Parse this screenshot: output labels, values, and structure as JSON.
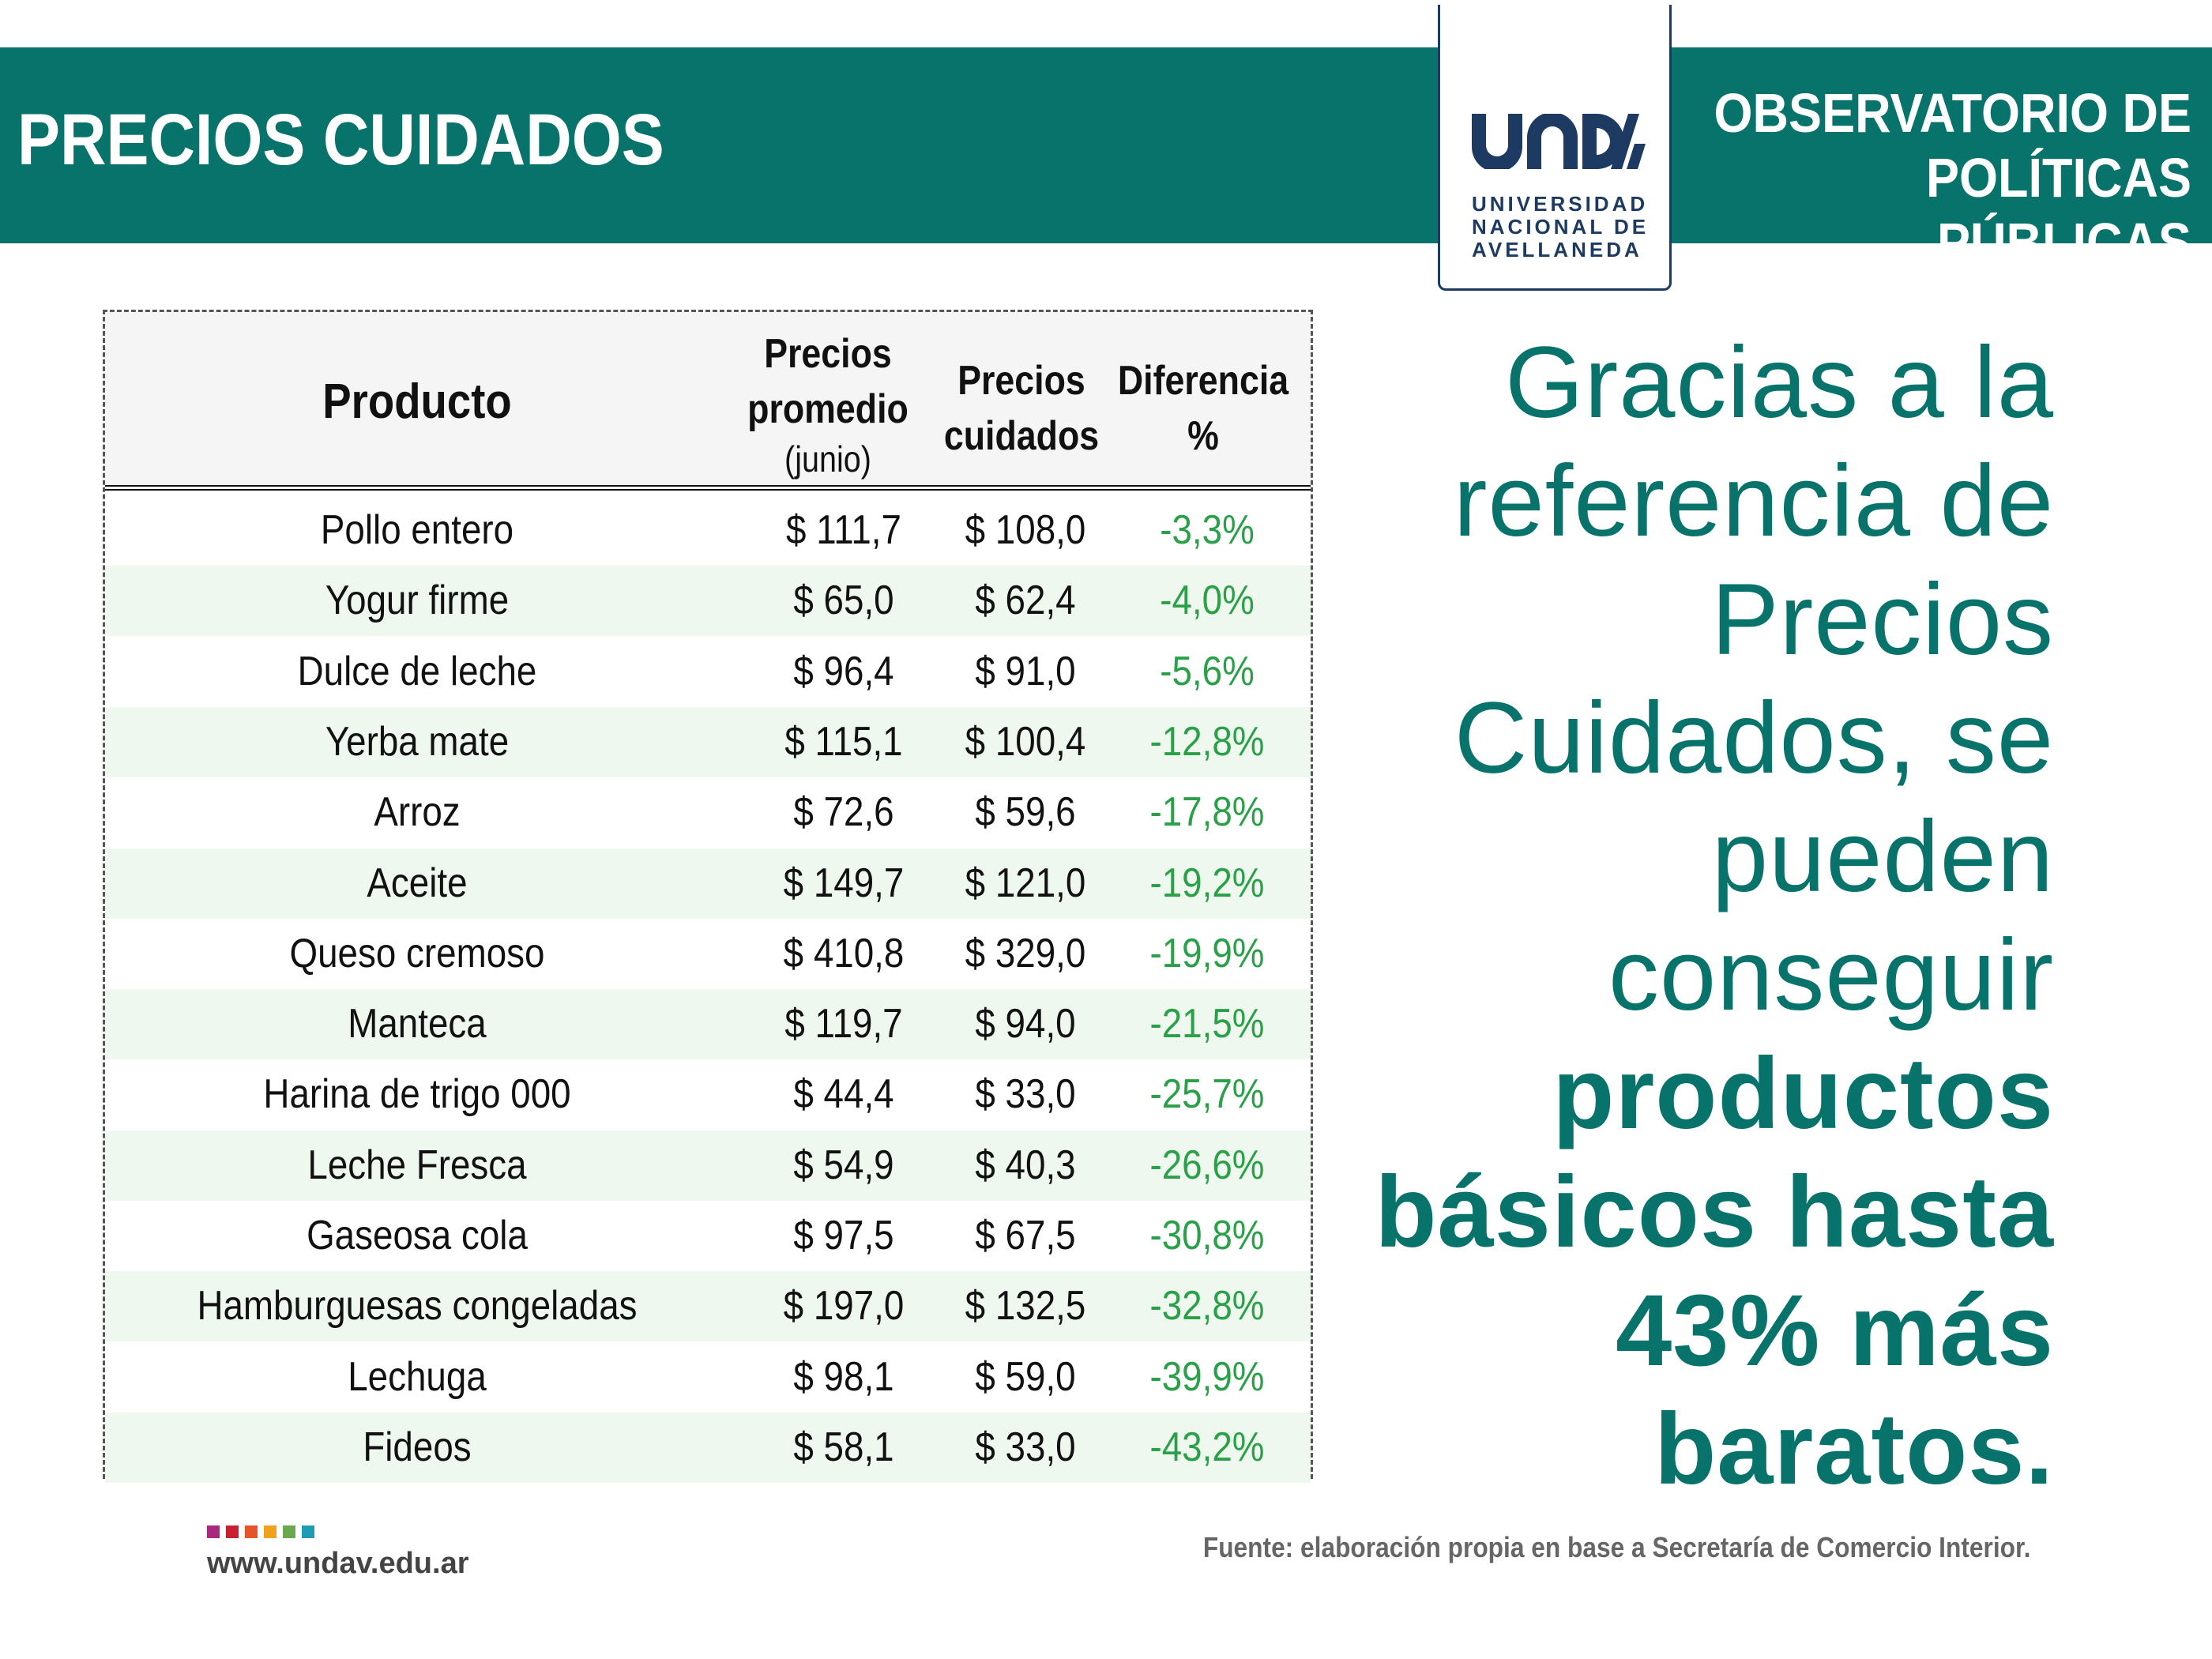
{
  "header": {
    "title": "PRECIOS CUIDADOS",
    "observatorio_line1": "OBSERVATORIO DE",
    "observatorio_line2": "POLÍTICAS PÚBLICAS",
    "logo_mark": "UNDAV",
    "logo_line1": "UNIVERSIDAD",
    "logo_line2": "NACIONAL DE",
    "logo_line3": "AVELLANEDA"
  },
  "table": {
    "headers": {
      "product": "Producto",
      "promedio_line1": "Precios",
      "promedio_line2": "promedio",
      "promedio_sub": "(junio)",
      "cuidados_line1": "Precios",
      "cuidados_line2": "cuidados",
      "diferencia_line1": "Diferencia",
      "diferencia_line2": "%"
    },
    "rows": [
      {
        "product": "Pollo entero",
        "promedio": "$ 111,7",
        "cuidados": "$ 108,0",
        "diferencia": "-3,3%"
      },
      {
        "product": "Yogur firme",
        "promedio": "$ 65,0",
        "cuidados": "$ 62,4",
        "diferencia": "-4,0%"
      },
      {
        "product": "Dulce de leche",
        "promedio": "$ 96,4",
        "cuidados": "$ 91,0",
        "diferencia": "-5,6%"
      },
      {
        "product": "Yerba mate",
        "promedio": "$ 115,1",
        "cuidados": "$ 100,4",
        "diferencia": "-12,8%"
      },
      {
        "product": "Arroz",
        "promedio": "$ 72,6",
        "cuidados": "$ 59,6",
        "diferencia": "-17,8%"
      },
      {
        "product": "Aceite",
        "promedio": "$ 149,7",
        "cuidados": "$ 121,0",
        "diferencia": "-19,2%"
      },
      {
        "product": "Queso cremoso",
        "promedio": "$ 410,8",
        "cuidados": "$ 329,0",
        "diferencia": "-19,9%"
      },
      {
        "product": "Manteca",
        "promedio": "$ 119,7",
        "cuidados": "$ 94,0",
        "diferencia": "-21,5%"
      },
      {
        "product": "Harina de trigo 000",
        "promedio": "$ 44,4",
        "cuidados": "$ 33,0",
        "diferencia": "-25,7%"
      },
      {
        "product": "Leche Fresca",
        "promedio": "$ 54,9",
        "cuidados": "$ 40,3",
        "diferencia": "-26,6%"
      },
      {
        "product": "Gaseosa cola",
        "promedio": "$ 97,5",
        "cuidados": "$ 67,5",
        "diferencia": "-30,8%"
      },
      {
        "product": "Hamburguesas congeladas",
        "promedio": "$ 197,0",
        "cuidados": "$ 132,5",
        "diferencia": "-32,8%"
      },
      {
        "product": "Lechuga",
        "promedio": "$ 98,1",
        "cuidados": "$ 59,0",
        "diferencia": "-39,9%"
      },
      {
        "product": "Fideos",
        "promedio": "$ 58,1",
        "cuidados": "$ 33,0",
        "diferencia": "-43,2%"
      }
    ]
  },
  "message": {
    "normal": [
      "Gracias a la",
      "referencia de",
      "Precios",
      "Cuidados, se",
      "pueden",
      "conseguir"
    ],
    "bold": [
      "productos",
      "básicos hasta",
      "43% más",
      "baratos."
    ]
  },
  "footer": {
    "fuente": "Fuente: elaboración propia en base a Secretaría de Comercio Interior.",
    "url": "www.undav.edu.ar",
    "dot_colors": [
      "#a8297e",
      "#c8202f",
      "#e8542a",
      "#f0a21c",
      "#6aa84f",
      "#1d9bb5"
    ]
  },
  "colors": {
    "brand_teal": "#07736b",
    "logo_navy": "#1d3a63",
    "negative_green": "#2aa148",
    "row_alt": "#eff8ef"
  }
}
